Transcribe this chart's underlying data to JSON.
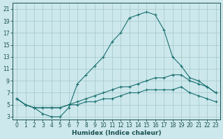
{
  "xlabel": "Humidex (Indice chaleur)",
  "bg_color": "#cce8ec",
  "grid_color": "#aacccc",
  "line_color": "#1a7070",
  "xlim": [
    -0.5,
    23.5
  ],
  "ylim": [
    2.5,
    22
  ],
  "xtick_vals": [
    0,
    1,
    2,
    3,
    4,
    5,
    6,
    7,
    8,
    9,
    10,
    11,
    12,
    13,
    14,
    15,
    16,
    17,
    18,
    19,
    20,
    21,
    22,
    23
  ],
  "ytick_vals": [
    3,
    5,
    7,
    9,
    11,
    13,
    15,
    17,
    19,
    21
  ],
  "series1_x": [
    0,
    1,
    2,
    3,
    4,
    5,
    6,
    7,
    8,
    9,
    10,
    11,
    12,
    13,
    14,
    15,
    16,
    17,
    18,
    19,
    20,
    21,
    22,
    23
  ],
  "series1_y": [
    6,
    5,
    4.5,
    3.5,
    3,
    3,
    4.5,
    8.5,
    10,
    11.5,
    13,
    15.5,
    17,
    19.5,
    20,
    20.5,
    20,
    17.5,
    13,
    11.5,
    9.5,
    9,
    8,
    7
  ],
  "series2_x": [
    0,
    1,
    2,
    3,
    4,
    5,
    6,
    7,
    8,
    9,
    10,
    11,
    12,
    13,
    14,
    15,
    16,
    17,
    18,
    19,
    20,
    21,
    22,
    23
  ],
  "series2_y": [
    6,
    5,
    4.5,
    4.5,
    4.5,
    4.5,
    5,
    5.5,
    6,
    6.5,
    7,
    7.5,
    8,
    8,
    8.5,
    9,
    9.5,
    9.5,
    10,
    10,
    9,
    8.5,
    8,
    7
  ],
  "series3_x": [
    0,
    1,
    2,
    3,
    4,
    5,
    6,
    7,
    8,
    9,
    10,
    11,
    12,
    13,
    14,
    15,
    16,
    17,
    18,
    19,
    20,
    21,
    22,
    23
  ],
  "series3_y": [
    6,
    5,
    4.5,
    4.5,
    4.5,
    4.5,
    5,
    5,
    5.5,
    5.5,
    6,
    6,
    6.5,
    7,
    7,
    7.5,
    7.5,
    7.5,
    7.5,
    8,
    7,
    6.5,
    6,
    5.5
  ],
  "tick_fontsize": 5.5,
  "xlabel_fontsize": 6.5,
  "tick_color": "#1a5050",
  "spine_color": "#1a5050"
}
